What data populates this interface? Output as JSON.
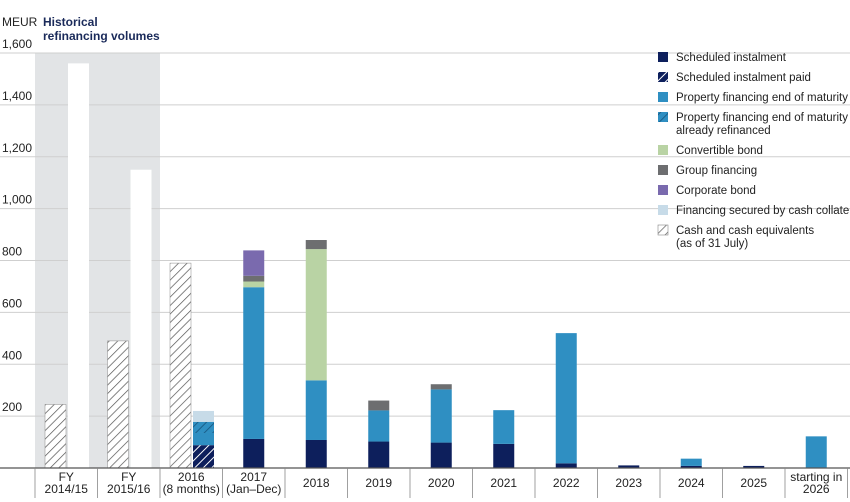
{
  "chart_data": {
    "type": "bar",
    "unit": "MEUR",
    "highlight_label_lines": [
      "Historical",
      "refinancing volumes"
    ],
    "ylim": [
      0,
      1600
    ],
    "yticks": [
      "200",
      "400",
      "600",
      "800",
      "1,000",
      "1,200",
      "1,400",
      "1,600"
    ],
    "categories": [
      {
        "lines": [
          "FY",
          "2014/15"
        ]
      },
      {
        "lines": [
          "FY",
          "2015/16"
        ]
      },
      {
        "lines": [
          "2016",
          "(8 months)"
        ]
      },
      {
        "lines": [
          "2017",
          "(Jan–Dec)"
        ]
      },
      {
        "lines": [
          "2018"
        ]
      },
      {
        "lines": [
          "2019"
        ]
      },
      {
        "lines": [
          "2020"
        ]
      },
      {
        "lines": [
          "2021"
        ]
      },
      {
        "lines": [
          "2022"
        ]
      },
      {
        "lines": [
          "2023"
        ]
      },
      {
        "lines": [
          "2024"
        ]
      },
      {
        "lines": [
          "2025"
        ]
      },
      {
        "lines": [
          "starting in",
          "2026"
        ]
      }
    ],
    "historical_totals": [
      1560,
      1150,
      null,
      null,
      null,
      null,
      null,
      null,
      null,
      null,
      null,
      null,
      null
    ],
    "cash_and_equivalents": [
      245,
      490,
      790,
      null,
      null,
      null,
      null,
      null,
      null,
      null,
      null,
      null,
      null
    ],
    "series": [
      {
        "name": "Scheduled instalment",
        "color": "#0d1f5c",
        "pattern": "solid",
        "values": [
          0,
          0,
          0,
          112,
          108,
          102,
          98,
          93,
          18,
          10,
          8,
          8,
          0
        ]
      },
      {
        "name": "Scheduled instalment paid",
        "color": "#0d1f5c",
        "pattern": "hatch",
        "values": [
          0,
          0,
          88,
          0,
          0,
          0,
          0,
          0,
          0,
          0,
          0,
          0,
          0
        ]
      },
      {
        "name": "Property financing end of maturity",
        "color": "#2f8fc2",
        "pattern": "solid",
        "values": [
          0,
          0,
          47,
          585,
          230,
          120,
          205,
          130,
          502,
          0,
          28,
          0,
          122
        ]
      },
      {
        "name": "Property financing end of maturity already refinanced",
        "color": "#2f8fc2",
        "pattern": "hatch",
        "values": [
          0,
          0,
          43,
          0,
          0,
          0,
          0,
          0,
          0,
          0,
          0,
          0,
          0
        ]
      },
      {
        "name": "Convertible bond",
        "color": "#b9d3a4",
        "pattern": "solid",
        "values": [
          0,
          0,
          0,
          22,
          506,
          0,
          0,
          0,
          0,
          0,
          0,
          0,
          0
        ]
      },
      {
        "name": "Group financing",
        "color": "#6d6e70",
        "pattern": "solid",
        "values": [
          0,
          0,
          0,
          22,
          35,
          38,
          20,
          0,
          0,
          0,
          0,
          0,
          0
        ]
      },
      {
        "name": "Corporate bond",
        "color": "#7a6aae",
        "pattern": "solid",
        "values": [
          0,
          0,
          0,
          98,
          0,
          0,
          0,
          0,
          0,
          0,
          0,
          0,
          0
        ]
      },
      {
        "name": "Financing secured by cash collateral",
        "color": "#c7dbe8",
        "pattern": "solid",
        "values": [
          0,
          0,
          42,
          0,
          0,
          0,
          0,
          0,
          0,
          0,
          0,
          0,
          0
        ]
      }
    ],
    "legend": [
      {
        "lines": [
          "Scheduled instalment"
        ],
        "color": "#0d1f5c",
        "pattern": "solid"
      },
      {
        "lines": [
          "Scheduled instalment paid"
        ],
        "color": "#0d1f5c",
        "pattern": "hatch"
      },
      {
        "lines": [
          "Property financing end of maturity"
        ],
        "color": "#2f8fc2",
        "pattern": "solid"
      },
      {
        "lines": [
          "Property financing end of maturity",
          "already refinanced"
        ],
        "color": "#2f8fc2",
        "pattern": "hatch"
      },
      {
        "lines": [
          "Convertible bond"
        ],
        "color": "#b9d3a4",
        "pattern": "solid"
      },
      {
        "lines": [
          "Group financing"
        ],
        "color": "#6d6e70",
        "pattern": "solid"
      },
      {
        "lines": [
          "Corporate bond"
        ],
        "color": "#7a6aae",
        "pattern": "solid"
      },
      {
        "lines": [
          "Financing secured by cash collateral"
        ],
        "color": "#c7dbe8",
        "pattern": "solid"
      },
      {
        "lines": [
          "Cash and cash equivalents",
          "(as of 31 July)"
        ],
        "color": "#555555",
        "pattern": "hatch-white"
      }
    ],
    "grid": true,
    "legend_position": "top-right",
    "highlight_background": "#e2e4e6"
  }
}
